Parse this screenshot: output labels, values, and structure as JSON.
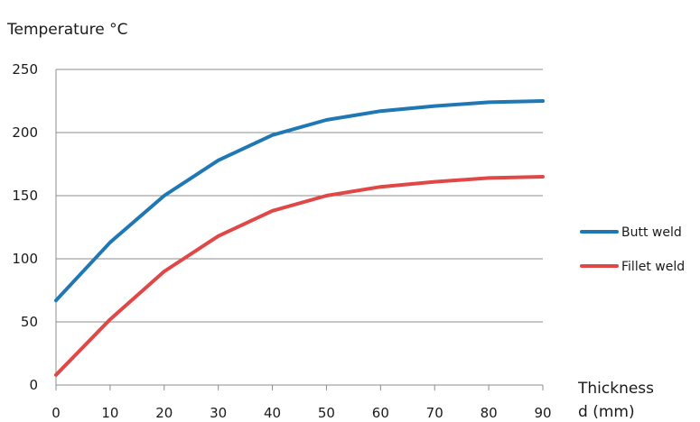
{
  "chart_data": {
    "type": "line",
    "ylabel": "Temperature °C",
    "xlabel_lines": [
      "Thickness",
      "d (mm)"
    ],
    "x": [
      0,
      10,
      20,
      30,
      40,
      50,
      60,
      70,
      80,
      90
    ],
    "xlim": [
      0,
      90
    ],
    "ylim": [
      0,
      250
    ],
    "x_ticks": [
      0,
      10,
      20,
      30,
      40,
      50,
      60,
      70,
      80,
      90
    ],
    "y_ticks": [
      0,
      50,
      100,
      150,
      200,
      250
    ],
    "grid": "horizontal",
    "legend_position": "right",
    "series": [
      {
        "name": "Butt weld",
        "color": "#1f78b4",
        "values": [
          67,
          113,
          150,
          178,
          198,
          210,
          217,
          221,
          224,
          225
        ]
      },
      {
        "name": "Fillet weld",
        "color": "#e04848",
        "values": [
          8,
          52,
          90,
          118,
          138,
          150,
          157,
          161,
          164,
          165
        ]
      }
    ]
  }
}
